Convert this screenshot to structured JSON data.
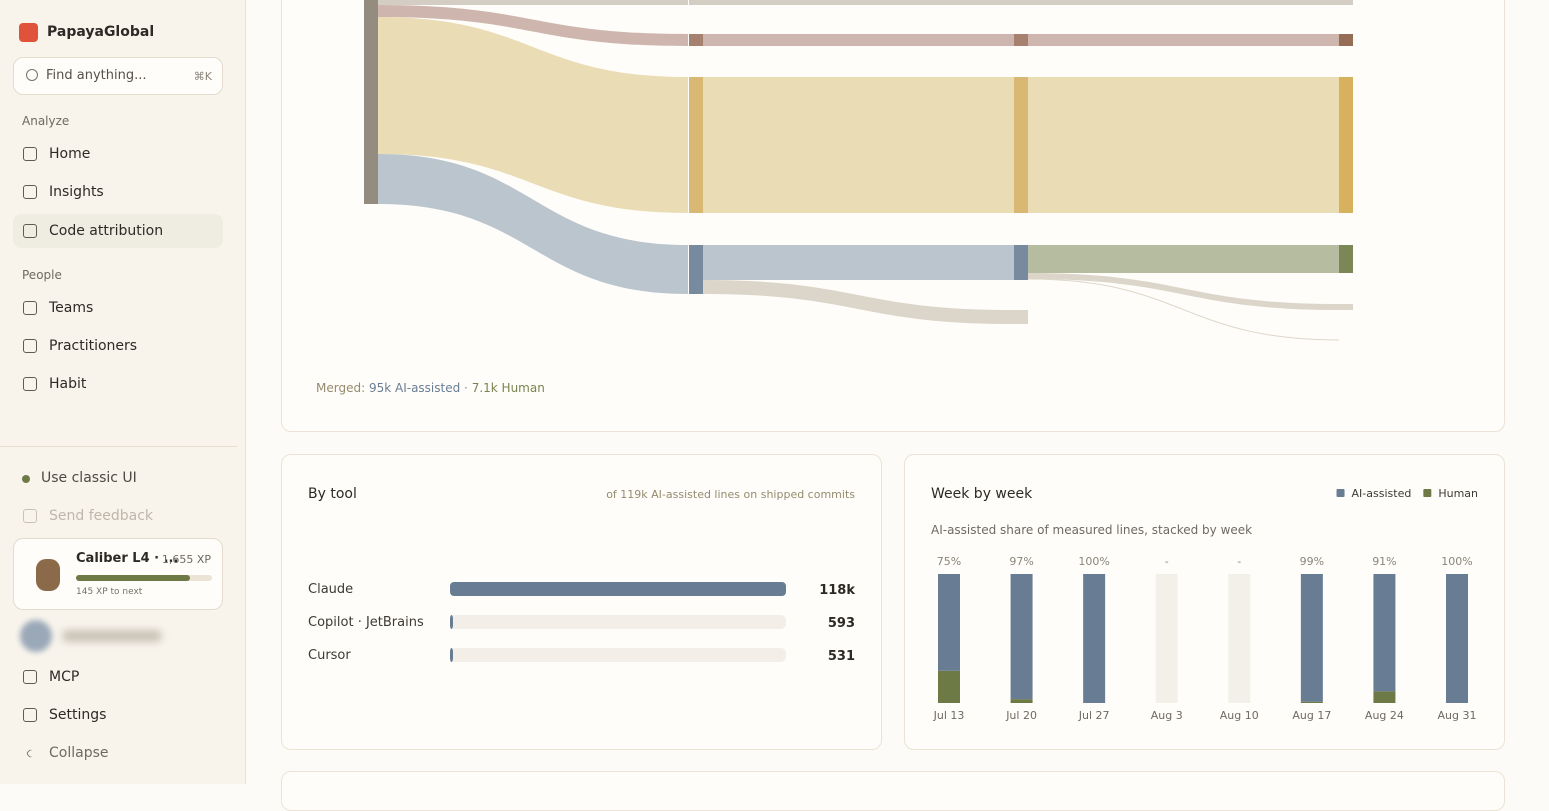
{
  "sidebar": {
    "brand": "PapayaGlobal",
    "search": {
      "placeholder": "Find anything...",
      "shortcut": "⌘K"
    },
    "sections": [
      {
        "title": "Analyze",
        "items": [
          "Home",
          "Insights",
          "Code attribution"
        ]
      },
      {
        "title": "People",
        "items": [
          "Teams",
          "Practitioners",
          "Habit"
        ]
      }
    ],
    "classic_ui": "Use classic UI",
    "feedback": "Send feedback",
    "profile": {
      "title": "Caliber L4 · ...",
      "xp": "1,655 XP",
      "next": "145 XP to next",
      "progress": 84
    },
    "footer_items": [
      "MCP",
      "Settings",
      "Collapse"
    ]
  },
  "sankey_note": {
    "label": "Merged:",
    "ai": "95k AI-assisted",
    "sep": "·",
    "human": "7.1k Human"
  },
  "chart_data": [
    {
      "type": "hbar",
      "title": "By tool",
      "subtitle": "of 119k AI-assisted lines on shipped commits",
      "categories": [
        "Claude",
        "Copilot · JetBrains",
        "Cursor"
      ],
      "values": [
        118000,
        593,
        531
      ],
      "value_labels": [
        "118k",
        "593",
        "531"
      ],
      "color": "#687d94",
      "xlim": [
        0,
        118000
      ]
    },
    {
      "type": "stacked_bar",
      "title": "Week by week",
      "subtitle": "AI-assisted share of measured lines, stacked by week",
      "categories": [
        "Jul 13",
        "Jul 20",
        "Jul 27",
        "Aug 3",
        "Aug 10",
        "Aug 17",
        "Aug 24",
        "Aug 31"
      ],
      "series": [
        {
          "name": "AI-assisted",
          "color": "#687d94",
          "values": [
            75,
            97,
            100,
            null,
            null,
            99,
            91,
            100
          ],
          "value_labels": [
            "75%",
            "97%",
            "100%",
            "-",
            "-",
            "99%",
            "91%",
            "100%"
          ]
        },
        {
          "name": "Human",
          "color": "#6e7a45",
          "values": [
            25,
            3,
            0,
            null,
            null,
            1,
            9,
            0
          ]
        }
      ],
      "ylim": [
        0,
        100
      ]
    }
  ]
}
